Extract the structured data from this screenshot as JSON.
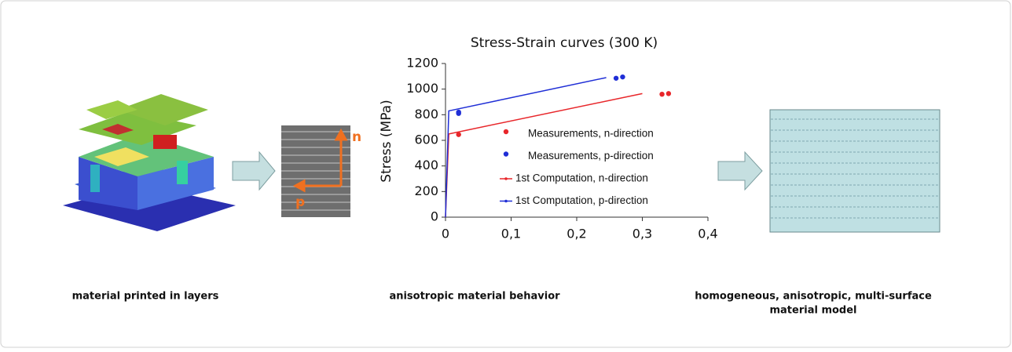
{
  "chart_data": {
    "type": "scatter",
    "title": "Stress-Strain curves (300 K)",
    "y_label": "Stress (MPa)",
    "xlim": [
      0,
      0.4
    ],
    "ylim": [
      0,
      1200
    ],
    "xticks": [
      0,
      {
        "value": 0.1,
        "label": "0,1"
      },
      {
        "value": 0.2,
        "label": "0,2"
      },
      {
        "value": 0.3,
        "label": "0,3"
      },
      {
        "value": 0.4,
        "label": "0,4"
      }
    ],
    "yticks": [
      0,
      200,
      400,
      600,
      800,
      1000,
      1200
    ],
    "series": [
      {
        "name": "Measurements, n-direction",
        "color": "#e8262a",
        "mode": "markers",
        "x": [
          0.02,
          0.33,
          0.34
        ],
        "values": [
          645,
          960,
          965
        ]
      },
      {
        "name": "Measurements, p-direction",
        "color": "#1f2ed6",
        "mode": "markers",
        "x": [
          0.02,
          0.02,
          0.26,
          0.27
        ],
        "values": [
          810,
          820,
          1085,
          1095
        ]
      },
      {
        "name": "1st Computation, n-direction",
        "color": "#e8262a",
        "mode": "lines",
        "x": [
          0,
          0.005,
          0.3
        ],
        "values": [
          0,
          650,
          965
        ]
      },
      {
        "name": "1st Computation, p-direction",
        "color": "#1f2ed6",
        "mode": "lines",
        "x": [
          0,
          0.005,
          0.245
        ],
        "values": [
          0,
          830,
          1090
        ]
      }
    ]
  },
  "photo_labels": {
    "n": "n",
    "p": "p"
  },
  "captions": [
    {
      "lines": [
        "material printed in layers"
      ]
    },
    {
      "lines": [
        "anisotropic material behavior"
      ]
    },
    {
      "lines": [
        "homogeneous, anisotropic, multi-surface",
        "material model"
      ]
    }
  ]
}
